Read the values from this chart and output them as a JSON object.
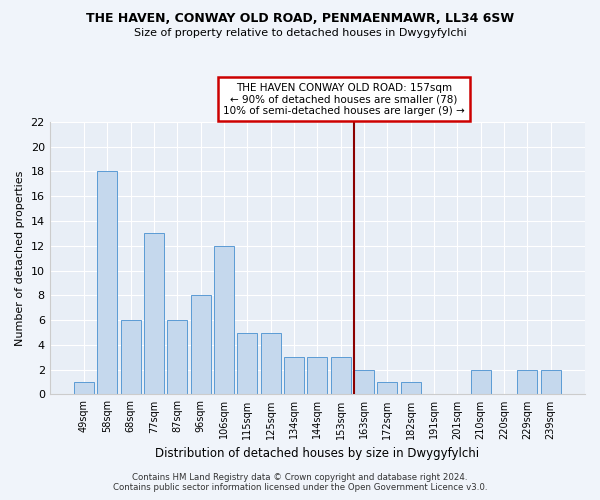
{
  "title_line1": "THE HAVEN, CONWAY OLD ROAD, PENMAENMAWR, LL34 6SW",
  "title_line2": "Size of property relative to detached houses in Dwygyfylchi",
  "xlabel": "Distribution of detached houses by size in Dwygyfylchi",
  "ylabel": "Number of detached properties",
  "categories": [
    "49sqm",
    "58sqm",
    "68sqm",
    "77sqm",
    "87sqm",
    "96sqm",
    "106sqm",
    "115sqm",
    "125sqm",
    "134sqm",
    "144sqm",
    "153sqm",
    "163sqm",
    "172sqm",
    "182sqm",
    "191sqm",
    "201sqm",
    "210sqm",
    "220sqm",
    "229sqm",
    "239sqm"
  ],
  "values": [
    1,
    18,
    6,
    13,
    6,
    8,
    12,
    5,
    5,
    3,
    3,
    3,
    2,
    1,
    1,
    0,
    0,
    2,
    0,
    2,
    2
  ],
  "bar_color": "#c5d8ed",
  "bar_edge_color": "#5b9bd5",
  "background_color": "#e8eef6",
  "grid_color": "#ffffff",
  "red_line_x": 11.55,
  "annotation_text_line1": "THE HAVEN CONWAY OLD ROAD: 157sqm",
  "annotation_text_line2": "← 90% of detached houses are smaller (78)",
  "annotation_text_line3": "10% of semi-detached houses are larger (9) →",
  "footer_line1": "Contains HM Land Registry data © Crown copyright and database right 2024.",
  "footer_line2": "Contains public sector information licensed under the Open Government Licence v3.0.",
  "ylim": [
    0,
    22
  ],
  "yticks": [
    0,
    2,
    4,
    6,
    8,
    10,
    12,
    14,
    16,
    18,
    20,
    22
  ],
  "fig_width": 6.0,
  "fig_height": 5.0,
  "fig_bg": "#f0f4fa"
}
